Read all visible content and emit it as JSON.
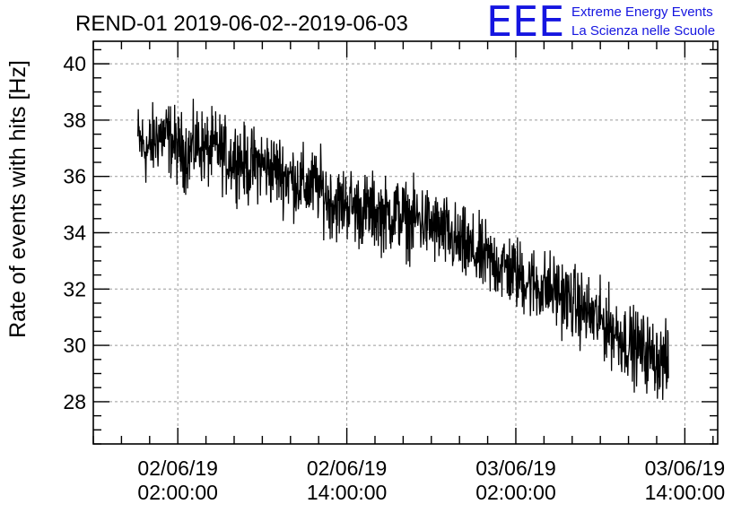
{
  "chart_data": {
    "type": "line",
    "title": "REND-01 2019-06-02--2019-06-03",
    "xlabel": "",
    "ylabel": "Rate of events with hits [Hz]",
    "ylim": [
      26.5,
      40.8
    ],
    "xlim": [
      "2019-06-01T20:00:00",
      "2019-06-03T16:20:00"
    ],
    "x_ticks": [
      {
        "x": "2019-06-02T02:00:00",
        "line1": "02/06/19",
        "line2": "02:00:00"
      },
      {
        "x": "2019-06-02T14:00:00",
        "line1": "02/06/19",
        "line2": "14:00:00"
      },
      {
        "x": "2019-06-03T02:00:00",
        "line1": "03/06/19",
        "line2": "02:00:00"
      },
      {
        "x": "2019-06-03T14:00:00",
        "line1": "03/06/19",
        "line2": "14:00:00"
      }
    ],
    "y_ticks": [
      28,
      30,
      32,
      34,
      36,
      38,
      40
    ],
    "grid": true,
    "legend": null,
    "series_color": "#000000",
    "series": [
      {
        "x_start": "2019-06-01T23:10:00",
        "x_end": "2019-06-03T12:50:00",
        "y": [
          37.3,
          36.9,
          37.5,
          37.4,
          37.0,
          36.8,
          37.2,
          36.9,
          37.0,
          36.6,
          36.7,
          36.3,
          36.5,
          36.3,
          36.2,
          36.0,
          35.8,
          35.6,
          35.7,
          35.2,
          35.0,
          35.1,
          34.8,
          34.8,
          34.7,
          34.6,
          34.7,
          34.4,
          34.5,
          34.3,
          34.1,
          33.9,
          33.6,
          33.4,
          33.2,
          33.0,
          32.9,
          32.7,
          32.5,
          32.3,
          32.1,
          32.0,
          31.9,
          31.6,
          31.4,
          31.1,
          30.9,
          30.7,
          30.4,
          30.1,
          29.9,
          29.7,
          29.5,
          29.3
        ],
        "noise_amplitude": 1.3
      }
    ]
  },
  "logo": {
    "letters": "EEE",
    "line1": "Extreme Energy Events",
    "line2": "La Scienza nelle Scuole",
    "color": "#1515e0"
  }
}
